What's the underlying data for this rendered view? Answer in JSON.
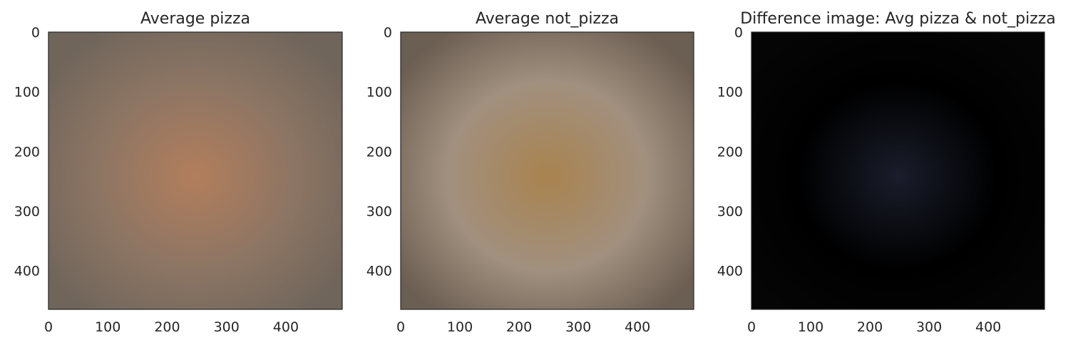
{
  "chart_data": [
    {
      "type": "image",
      "title": "Average pizza",
      "x_ticks": [
        0,
        100,
        200,
        300,
        400
      ],
      "y_ticks": [
        0,
        100,
        200,
        300,
        400
      ],
      "xlim": [
        0,
        495
      ],
      "ylim": [
        465,
        0
      ],
      "grid": false,
      "colors": {
        "background": "#8c7564",
        "center": "#b27e5c",
        "edge": "#6f655b"
      }
    },
    {
      "type": "image",
      "title": "Average not_pizza",
      "x_ticks": [
        0,
        100,
        200,
        300,
        400
      ],
      "y_ticks": [
        0,
        100,
        200,
        300,
        400
      ],
      "xlim": [
        0,
        495
      ],
      "ylim": [
        465,
        0
      ],
      "grid": false,
      "colors": {
        "background": "#a1907f",
        "center": "#a9834f",
        "edge": "#6b5e52"
      }
    },
    {
      "type": "image",
      "title": "Difference image: Avg pizza & not_pizza",
      "x_ticks": [
        0,
        100,
        200,
        300,
        400
      ],
      "y_ticks": [
        0,
        100,
        200,
        300,
        400
      ],
      "xlim": [
        0,
        495
      ],
      "ylim": [
        465,
        0
      ],
      "grid": false,
      "colors": {
        "background": "#000000",
        "center": "#1a1d2b",
        "edge": "#050505"
      }
    }
  ]
}
